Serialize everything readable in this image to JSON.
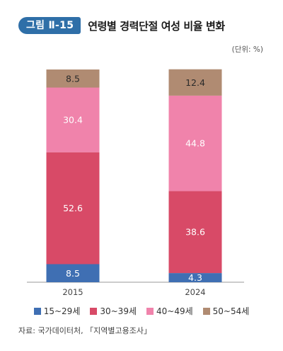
{
  "header": {
    "figure_label": "그림 Ⅱ-15",
    "title": "연령별 경력단절 여성 비율 변화"
  },
  "unit_label": "(단위: %)",
  "colors": {
    "badge": "#2f6fa8",
    "15~29세": "#3f6fb3",
    "30~39세": "#d84a67",
    "40~49세": "#f083ab",
    "50~54세": "#b08b72"
  },
  "chart_data": {
    "type": "bar",
    "stacked": true,
    "title": "연령별 경력단절 여성 비율 변화",
    "categories": [
      "2015",
      "2024"
    ],
    "series": [
      {
        "name": "15~29세",
        "values": [
          8.5,
          4.3
        ],
        "color": "#3f6fb3"
      },
      {
        "name": "30~39세",
        "values": [
          52.6,
          38.6
        ],
        "color": "#d84a67"
      },
      {
        "name": "40~49세",
        "values": [
          30.4,
          44.8
        ],
        "color": "#f083ab"
      },
      {
        "name": "50~54세",
        "values": [
          8.5,
          12.4
        ],
        "color": "#b08b72"
      }
    ],
    "ylim": [
      0,
      100
    ],
    "grid": false,
    "legend_position": "bottom"
  },
  "source": "자료: 국가데이터처, 「지역별고용조사」"
}
